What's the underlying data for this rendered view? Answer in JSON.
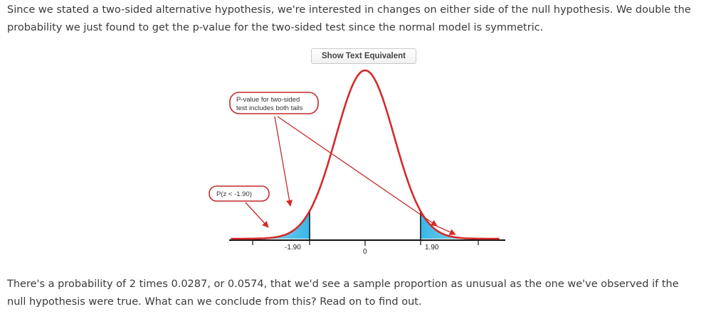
{
  "intro_text": "Since we stated a two-sided alternative hypothesis, we're interested in changes on either side of the null hypothesis. We double the probability we just found to get the p-value for the two-sided test since the normal model is symmetric.",
  "button_label": "Show Text Equivalent",
  "figure": {
    "callout_two_sided_line1": "P-value for two-sided",
    "callout_two_sided_line2": "test includes both tails",
    "callout_left_tail": "P(z < -1.90)",
    "ticks": [
      {
        "value": -1.9,
        "label": "-1.90"
      },
      {
        "value": 0,
        "label": "0"
      },
      {
        "value": 1.9,
        "label": "1.90"
      }
    ],
    "shaded_tails": [
      "z < -1.90",
      "z > 1.90"
    ],
    "curve_color": "#d42a2a",
    "tail_fill_color": "#5ec3e8"
  },
  "conclusion_text": "There's a probability of 2 times 0.0287, or 0.0574, that we'd see a sample proportion as unusual as the one we've observed if the null hypothesis were true. What can we conclude from this? Read on to find out."
}
